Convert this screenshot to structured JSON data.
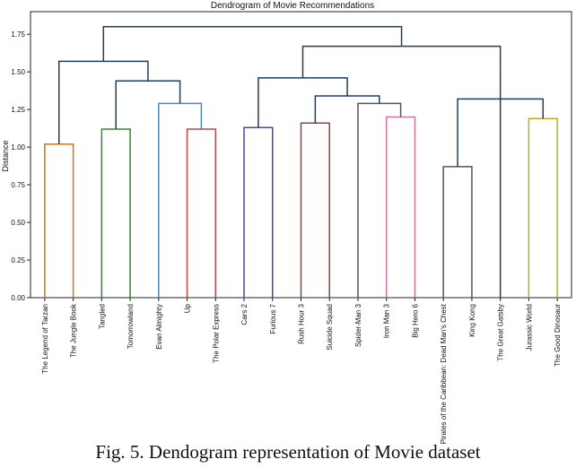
{
  "caption": "Fig. 5. Dendogram representation of Movie dataset",
  "chart_data": {
    "type": "dendrogram",
    "title": "Dendrogram of Movie Recommendations",
    "ylabel": "Distance",
    "ylim": [
      0,
      1.9
    ],
    "yticks": [
      "0.00",
      "0.25",
      "0.50",
      "0.75",
      "1.00",
      "1.25",
      "1.50",
      "1.75"
    ],
    "grid": false,
    "leaves": [
      "The Legend of Tarzan",
      "The Jungle Book",
      "Tangled",
      "Tomorrowland",
      "Evan Almighty",
      "Up",
      "The Polar Express",
      "Cars 2",
      "Furious 7",
      "Rush Hour 3",
      "Suicide Squad",
      "Spider-Man 3",
      "Iron Man 3",
      "Big Hero 6",
      "Pirates of the Caribbean: Dead Man's Chest",
      "King Kong",
      "The Great Gatsby",
      "Jurassic World",
      "The Good Dinosaur"
    ],
    "merges": [
      {
        "left": "L0",
        "right": "L1",
        "height": 1.02,
        "color": "#c8781e"
      },
      {
        "left": "L2",
        "right": "L3",
        "height": 1.12,
        "color": "#2e8b2e"
      },
      {
        "left": "L5",
        "right": "L6",
        "height": 1.12,
        "color": "#c0444a"
      },
      {
        "left": "L7",
        "right": "L8",
        "height": 1.13,
        "color": "#5a3f9a"
      },
      {
        "left": "L9",
        "right": "L10",
        "height": 1.16,
        "color": "#8a4a3a"
      },
      {
        "left": "L12",
        "right": "L13",
        "height": 1.2,
        "color": "#d070a8"
      },
      {
        "left": "L17",
        "right": "L18",
        "height": 1.19,
        "color": "#b8b020"
      },
      {
        "left": "L14",
        "right": "L15",
        "height": 0.87,
        "color": "#555555"
      },
      {
        "left": "L4",
        "right": "N2",
        "height": 1.29,
        "color": "#4a8ab8"
      },
      {
        "left": "L11",
        "right": "N5",
        "height": 1.29,
        "color": "#555555"
      },
      {
        "left": "N4",
        "right": "N9",
        "height": 1.34,
        "color": "#1f3f5f"
      },
      {
        "left": "N1",
        "right": "N8",
        "height": 1.44,
        "color": "#1f3f5f"
      },
      {
        "left": "N3",
        "right": "N10",
        "height": 1.46,
        "color": "#1f3f5f"
      },
      {
        "left": "N7",
        "right": "N6",
        "height": 1.32,
        "color": "#1f3f5f"
      },
      {
        "left": "L16",
        "right": "N13",
        "height": 1.55,
        "color": "#1f3f5f"
      },
      {
        "left": "N0",
        "right": "N11",
        "height": 1.57,
        "color": "#1f3f5f"
      },
      {
        "left": "N12",
        "right": "N14",
        "height": 1.67,
        "color": "#1f3f5f"
      },
      {
        "left": "N15",
        "right": "N16",
        "height": 1.8,
        "color": "#1f3f5f"
      }
    ]
  }
}
